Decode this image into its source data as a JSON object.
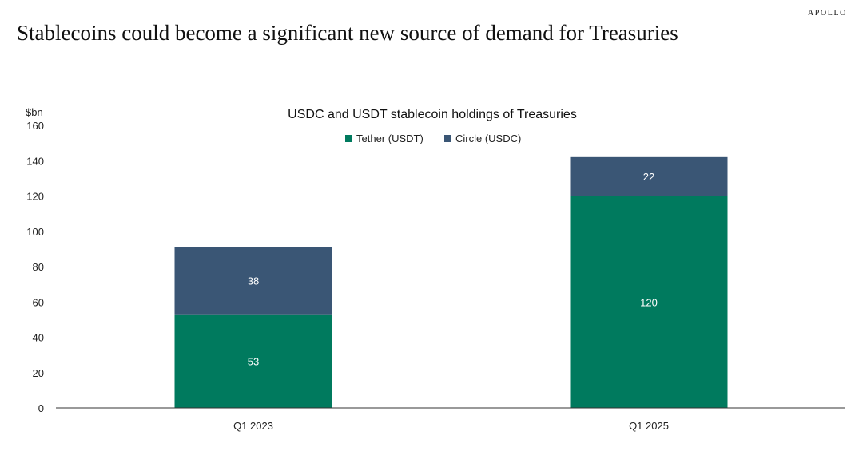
{
  "brand": "APOLLO",
  "headline": "Stablecoins could become a significant new source of demand for Treasuries",
  "colors": {
    "tether": "#007A5E",
    "circle": "#3A5675",
    "axis": "#333333"
  },
  "chart_data": {
    "type": "bar",
    "stacked": true,
    "title": "USDC and USDT stablecoin holdings of Treasuries",
    "ylabel": "$bn",
    "xlabel": "",
    "categories": [
      "Q1 2023",
      "Q1 2025"
    ],
    "series": [
      {
        "name": "Tether (USDT)",
        "values": [
          53,
          120
        ]
      },
      {
        "name": "Circle (USDC)",
        "values": [
          38,
          22
        ]
      }
    ],
    "ylim": [
      0,
      160
    ],
    "yticks": [
      0,
      20,
      40,
      60,
      80,
      100,
      120,
      140,
      160
    ],
    "legend": "top-center",
    "grid": false,
    "data_labels": true
  }
}
